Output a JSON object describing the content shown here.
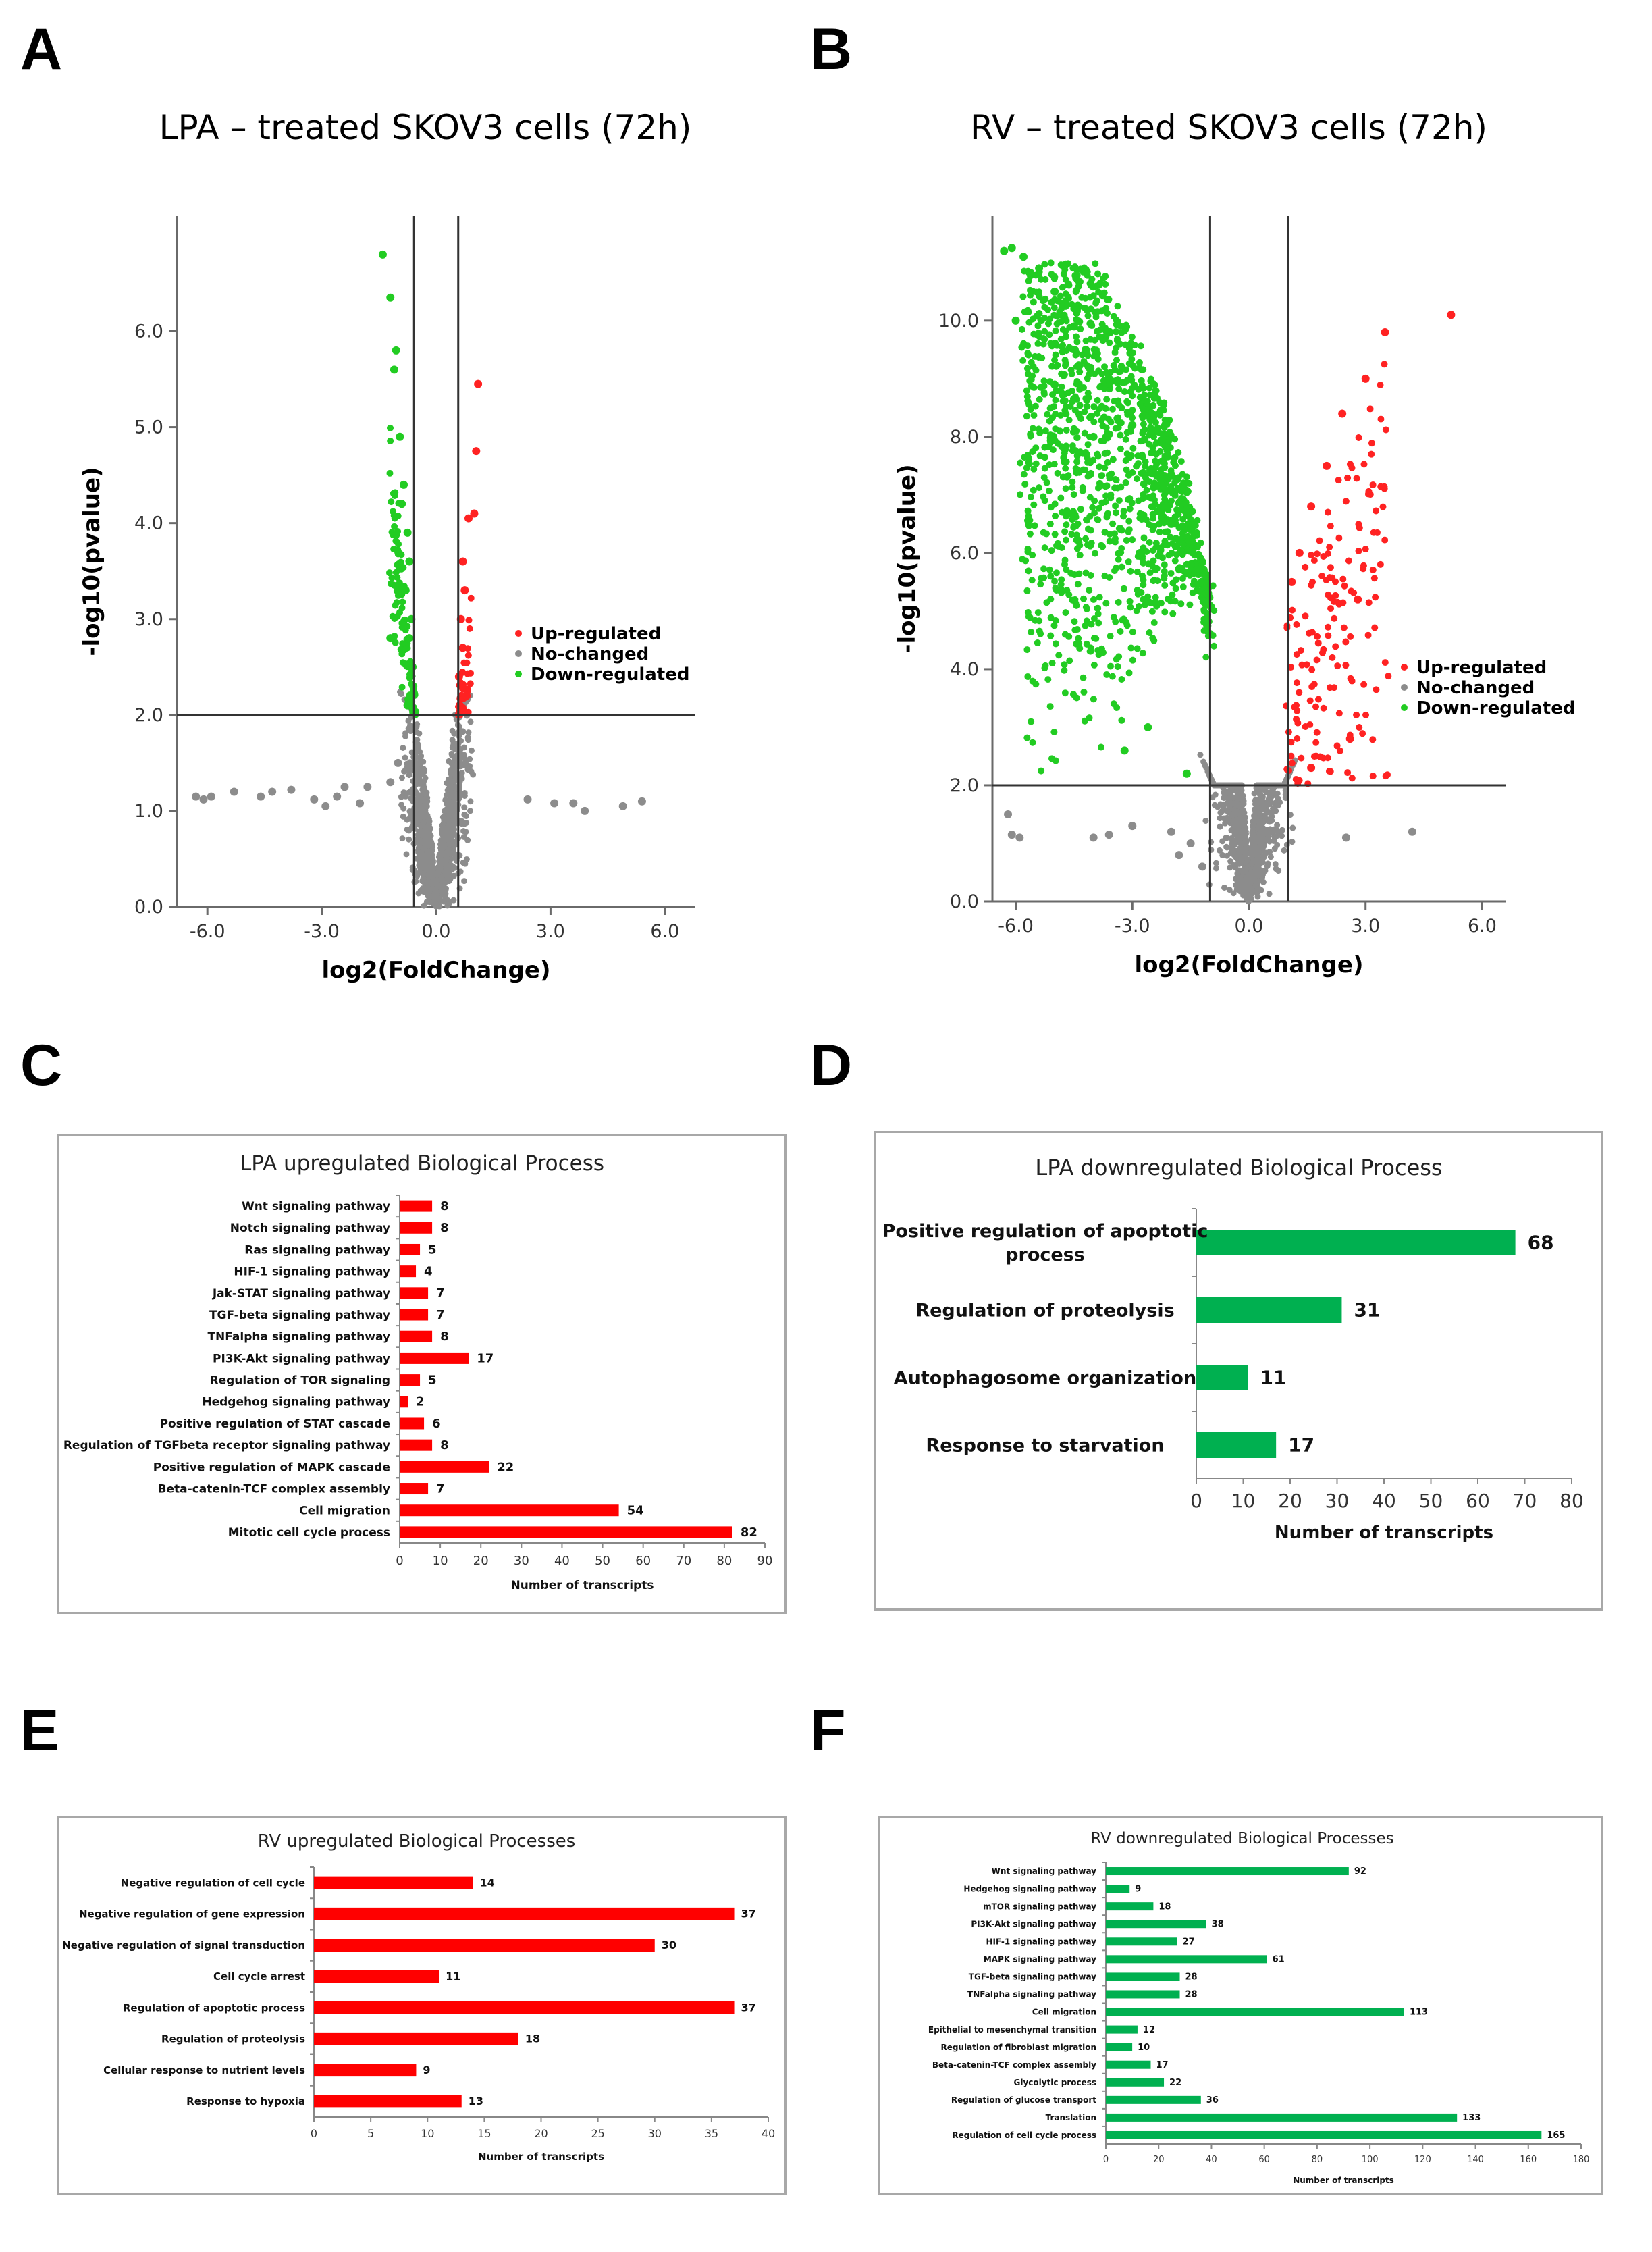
{
  "panel_letters": {
    "a": "A",
    "b": "B",
    "c": "C",
    "d": "D",
    "e": "E",
    "f": "F"
  },
  "colors": {
    "up": "#ff2222",
    "nochange": "#8c8c8c",
    "down": "#22cc22",
    "bar_red": "#ff0000",
    "bar_green": "#00b050"
  },
  "chart_data": [
    {
      "id": "A",
      "type": "scatter",
      "title": "LPA – treated SKOV3 cells (72h)",
      "xlabel": "log2(FoldChange)",
      "ylabel": "-log10(pvalue)",
      "xlim": [
        -6.8,
        6.8
      ],
      "ylim": [
        0,
        7.2
      ],
      "xticks": [
        -6,
        -3,
        0,
        3,
        6
      ],
      "xtick_labels": [
        "-6.0",
        "-3.0",
        "0.0",
        "3.0",
        "6.0"
      ],
      "yticks": [
        0,
        1,
        2,
        3,
        4,
        5,
        6
      ],
      "ytick_labels": [
        "0.0",
        "1.0",
        "2.0",
        "3.0",
        "4.0",
        "5.0",
        "6.0"
      ],
      "vlines": [
        -0.58,
        0.58
      ],
      "hline": 2.0,
      "legend": [
        "Up-regulated",
        "No-changed",
        "Down-regulated"
      ],
      "legend_position": "right",
      "series": [
        {
          "name": "Down-regulated",
          "points": [
            [
              -1.4,
              6.8
            ],
            [
              -1.2,
              6.35
            ],
            [
              -1.05,
              5.8
            ],
            [
              -1.1,
              5.6
            ],
            [
              -0.95,
              4.9
            ],
            [
              -0.85,
              4.4
            ],
            [
              -0.9,
              4.2
            ],
            [
              -0.75,
              3.9
            ],
            [
              -0.7,
              3.6
            ],
            [
              -0.8,
              3.3
            ],
            [
              -0.65,
              3.0
            ],
            [
              -0.7,
              2.8
            ],
            [
              -1.2,
              2.8
            ],
            [
              -0.62,
              2.5
            ],
            [
              -0.6,
              2.3
            ],
            [
              -0.75,
              2.1
            ],
            [
              -0.65,
              2.2
            ]
          ]
        },
        {
          "name": "Up-regulated",
          "points": [
            [
              1.1,
              5.45
            ],
            [
              1.05,
              4.75
            ],
            [
              1.0,
              4.1
            ],
            [
              0.85,
              4.05
            ],
            [
              0.7,
              3.6
            ],
            [
              0.75,
              3.3
            ],
            [
              0.65,
              3.0
            ],
            [
              0.7,
              2.7
            ],
            [
              0.6,
              2.4
            ],
            [
              0.62,
              2.1
            ],
            [
              0.8,
              2.2
            ]
          ]
        },
        {
          "name": "No-changed",
          "points": [
            [
              -6.3,
              1.15
            ],
            [
              -6.1,
              1.12
            ],
            [
              -5.9,
              1.15
            ],
            [
              -5.3,
              1.2
            ],
            [
              -4.6,
              1.15
            ],
            [
              -4.3,
              1.2
            ],
            [
              -3.8,
              1.22
            ],
            [
              -3.2,
              1.12
            ],
            [
              -2.9,
              1.05
            ],
            [
              -2.6,
              1.15
            ],
            [
              -2.4,
              1.25
            ],
            [
              -2.0,
              1.08
            ],
            [
              -1.8,
              1.25
            ],
            [
              -1.2,
              1.3
            ],
            [
              -1.0,
              1.5
            ],
            [
              2.4,
              1.12
            ],
            [
              3.1,
              1.08
            ],
            [
              3.6,
              1.08
            ],
            [
              3.9,
              1.0
            ],
            [
              4.9,
              1.05
            ],
            [
              5.4,
              1.1
            ]
          ]
        }
      ]
    },
    {
      "id": "B",
      "type": "scatter",
      "title": "RV – treated SKOV3 cells (72h)",
      "xlabel": "log2(FoldChange)",
      "ylabel": "-log10(pvalue)",
      "xlim": [
        -6.6,
        6.6
      ],
      "ylim": [
        0,
        11.8
      ],
      "xticks": [
        -6,
        -3,
        0,
        3,
        6
      ],
      "xtick_labels": [
        "-6.0",
        "-3.0",
        "0.0",
        "3.0",
        "6.0"
      ],
      "yticks": [
        0,
        2,
        4,
        6,
        8,
        10
      ],
      "ytick_labels": [
        "0.0",
        "2.0",
        "4.0",
        "6.0",
        "8.0",
        "10.0"
      ],
      "vlines": [
        -1.0,
        1.0
      ],
      "hline": 2.0,
      "legend": [
        "Up-regulated",
        "No-changed",
        "Down-regulated"
      ],
      "legend_position": "right",
      "series": [
        {
          "name": "Down-regulated",
          "points": [
            [
              -6.3,
              11.2
            ],
            [
              -6.1,
              11.25
            ],
            [
              -5.8,
              11.1
            ],
            [
              -5.4,
              10.9
            ],
            [
              -5.0,
              10.5
            ],
            [
              -6.0,
              10.0
            ],
            [
              -4.5,
              9.9
            ],
            [
              -4.2,
              9.5
            ],
            [
              -3.6,
              9.0
            ],
            [
              -3.0,
              8.2
            ],
            [
              -2.5,
              7.4
            ],
            [
              -2.0,
              6.5
            ],
            [
              -1.5,
              5.8
            ],
            [
              -3.2,
              2.6
            ],
            [
              -2.6,
              3.0
            ],
            [
              -1.6,
              2.2
            ],
            [
              -5.0,
              8.9
            ],
            [
              -4.0,
              8.0
            ],
            [
              -2.8,
              6.0
            ]
          ]
        },
        {
          "name": "Up-regulated",
          "points": [
            [
              5.2,
              10.1
            ],
            [
              3.5,
              9.8
            ],
            [
              3.0,
              9.0
            ],
            [
              2.4,
              8.4
            ],
            [
              2.0,
              7.5
            ],
            [
              1.6,
              6.8
            ],
            [
              1.3,
              6.0
            ],
            [
              1.1,
              5.5
            ],
            [
              2.8,
              5.2
            ],
            [
              2.6,
              2.8
            ],
            [
              1.6,
              2.3
            ]
          ]
        },
        {
          "name": "No-changed",
          "points": [
            [
              -6.2,
              1.5
            ],
            [
              -6.1,
              1.15
            ],
            [
              -5.9,
              1.1
            ],
            [
              -4.0,
              1.1
            ],
            [
              -3.6,
              1.15
            ],
            [
              -3.0,
              1.3
            ],
            [
              -2.0,
              1.2
            ],
            [
              -1.5,
              1.0
            ],
            [
              -1.8,
              0.8
            ],
            [
              -1.2,
              0.6
            ],
            [
              2.5,
              1.1
            ],
            [
              4.2,
              1.2
            ]
          ]
        }
      ]
    },
    {
      "id": "C",
      "type": "bar",
      "orientation": "horizontal",
      "title": "LPA upregulated Biological Process",
      "categories": [
        "Wnt signaling pathway",
        "Notch signaling pathway",
        "Ras signaling pathway",
        "HIF-1 signaling pathway",
        "Jak-STAT signaling pathway",
        "TGF-beta signaling pathway",
        "TNFalpha signaling pathway",
        "PI3K-Akt signaling pathway",
        "Regulation of TOR signaling",
        "Hedgehog signaling pathway",
        "Positive regulation of STAT cascade",
        "Regulation of TGFbeta receptor signaling pathway",
        "Positive regulation of MAPK cascade",
        "Beta-catenin-TCF complex assembly",
        "Cell migration",
        "Mitotic cell cycle process"
      ],
      "values": [
        8,
        8,
        5,
        4,
        7,
        7,
        8,
        17,
        5,
        2,
        6,
        8,
        22,
        7,
        54,
        82
      ],
      "value_labels": [
        "8",
        "8",
        "5",
        "4",
        "7",
        "7",
        "8",
        "17",
        "5",
        "2",
        "6",
        "8",
        "22",
        "7",
        "54",
        "82"
      ],
      "xlabel": "Number of transcripts",
      "xlim": [
        0,
        90
      ],
      "xticks": [
        0,
        10,
        20,
        30,
        40,
        50,
        60,
        70,
        80,
        90
      ],
      "xtick_labels": [
        "0",
        "10",
        "20",
        "30",
        "40",
        "50",
        "60",
        "70",
        "80",
        "90"
      ]
    },
    {
      "id": "D",
      "type": "bar",
      "orientation": "horizontal",
      "title": "LPA downregulated Biological Process",
      "categories": [
        "Positive regulation of apoptotic process",
        "Regulation of proteolysis",
        "Autophagosome organization",
        "Response to starvation"
      ],
      "category_lines": [
        [
          "Positive regulation of apoptotic",
          "process"
        ],
        [
          "Regulation of proteolysis"
        ],
        [
          "Autophagosome organization"
        ],
        [
          "Response to starvation"
        ]
      ],
      "values": [
        68,
        31,
        11,
        17
      ],
      "value_labels": [
        "68",
        "31",
        "11",
        "17"
      ],
      "xlabel": "Number of transcripts",
      "xlim": [
        0,
        80
      ],
      "xticks": [
        0,
        10,
        20,
        30,
        40,
        50,
        60,
        70,
        80
      ],
      "xtick_labels": [
        "0",
        "10",
        "20",
        "30",
        "40",
        "50",
        "60",
        "70",
        "80"
      ]
    },
    {
      "id": "E",
      "type": "bar",
      "orientation": "horizontal",
      "title": "RV upregulated Biological Processes",
      "categories": [
        "Negative regulation of cell cycle",
        "Negative regulation of gene expression",
        "Negative regulation of signal transduction",
        "Cell cycle arrest",
        "Regulation of apoptotic process",
        "Regulation of proteolysis",
        "Cellular response to nutrient levels",
        "Response to hypoxia"
      ],
      "values": [
        14,
        37,
        30,
        11,
        37,
        18,
        9,
        13
      ],
      "value_labels": [
        "14",
        "37",
        "30",
        "11",
        "37",
        "18",
        "9",
        "13"
      ],
      "xlabel": "Number of transcripts",
      "xlim": [
        0,
        40
      ],
      "xticks": [
        0,
        5,
        10,
        15,
        20,
        25,
        30,
        35,
        40
      ],
      "xtick_labels": [
        "0",
        "5",
        "10",
        "15",
        "20",
        "25",
        "30",
        "35",
        "40"
      ]
    },
    {
      "id": "F",
      "type": "bar",
      "orientation": "horizontal",
      "title": "RV downregulated Biological Processes",
      "categories": [
        "Wnt signaling pathway",
        "Hedgehog signaling pathway",
        "mTOR signaling pathway",
        "PI3K-Akt signaling pathway",
        "HIF-1 signaling pathway",
        "MAPK signaling pathway",
        "TGF-beta signaling pathway",
        "TNFalpha signaling pathway",
        "Cell migration",
        "Epithelial to mesenchymal transition",
        "Regulation of fibroblast migration",
        "Beta-catenin-TCF complex assembly",
        "Glycolytic process",
        "Regulation of glucose transport",
        "Translation",
        "Regulation of cell cycle process"
      ],
      "values": [
        92,
        9,
        18,
        38,
        27,
        61,
        28,
        28,
        113,
        12,
        10,
        17,
        22,
        36,
        133,
        165
      ],
      "value_labels": [
        "92",
        "9",
        "18",
        "38",
        "27",
        "61",
        "28",
        "28",
        "113",
        "12",
        "10",
        "17",
        "22",
        "36",
        "133",
        "165"
      ],
      "xlabel": "Number of transcripts",
      "xlim": [
        0,
        180
      ],
      "xticks": [
        0,
        20,
        40,
        60,
        80,
        100,
        120,
        140,
        160,
        180
      ],
      "xtick_labels": [
        "0",
        "20",
        "40",
        "60",
        "80",
        "100",
        "120",
        "140",
        "160",
        "180"
      ]
    }
  ]
}
